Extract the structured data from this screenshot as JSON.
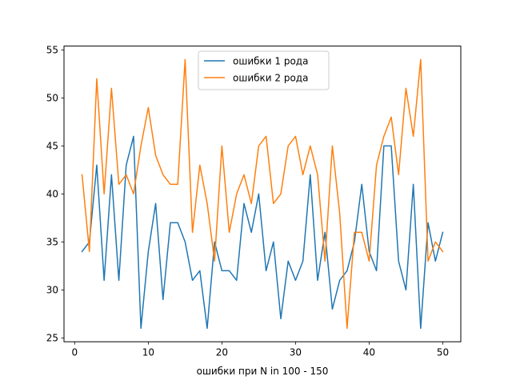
{
  "chart_data": {
    "type": "line",
    "title": "",
    "xlabel": "ошибки при N in 100 - 150",
    "ylabel": "",
    "xlim": [
      -1.45,
      52.45
    ],
    "ylim": [
      24.6,
      55.4
    ],
    "xticks": [
      0,
      10,
      20,
      30,
      40,
      50
    ],
    "yticks": [
      25,
      30,
      35,
      40,
      45,
      50,
      55
    ],
    "grid": false,
    "legend_position": "upper-center",
    "x": [
      1,
      2,
      3,
      4,
      5,
      6,
      7,
      8,
      9,
      10,
      11,
      12,
      13,
      14,
      15,
      16,
      17,
      18,
      19,
      20,
      21,
      22,
      23,
      24,
      25,
      26,
      27,
      28,
      29,
      30,
      31,
      32,
      33,
      34,
      35,
      36,
      37,
      38,
      39,
      40,
      41,
      42,
      43,
      44,
      45,
      46,
      47,
      48,
      49,
      50
    ],
    "series": [
      {
        "name": "ошибки 1 рода",
        "color": "#1f77b4",
        "values": [
          34,
          35,
          43,
          31,
          42,
          31,
          43,
          46,
          26,
          34,
          39,
          29,
          37,
          37,
          35,
          31,
          32,
          26,
          35,
          32,
          32,
          31,
          39,
          36,
          40,
          32,
          35,
          27,
          33,
          31,
          33,
          42,
          31,
          36,
          28,
          31,
          32,
          35,
          41,
          34,
          32,
          45,
          45,
          33,
          30,
          41,
          26,
          37,
          33,
          36
        ]
      },
      {
        "name": "ошибки 2 рода",
        "color": "#ff7f0e",
        "values": [
          42,
          34,
          52,
          40,
          51,
          41,
          42,
          40,
          45,
          49,
          44,
          42,
          41,
          41,
          54,
          36,
          43,
          39,
          33,
          45,
          36,
          40,
          42,
          39,
          45,
          46,
          39,
          40,
          45,
          46,
          42,
          45,
          42,
          33,
          45,
          38,
          26,
          36,
          36,
          33,
          43,
          46,
          48,
          42,
          51,
          46,
          54,
          33,
          35,
          34
        ]
      }
    ]
  }
}
